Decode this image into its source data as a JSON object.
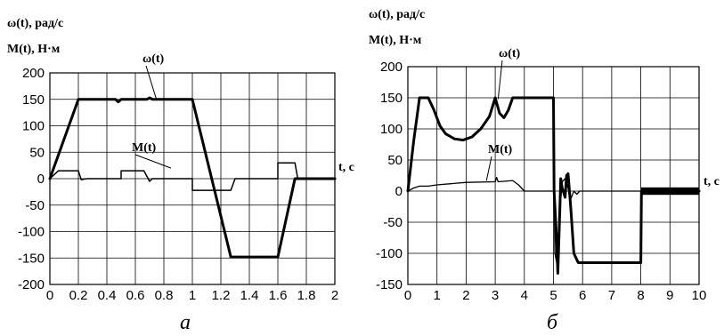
{
  "chart_data": [
    {
      "type": "line",
      "caption": "а",
      "ylabel_line1": "ω(t), рад/с",
      "ylabel_line2": "M(t),  Н·м",
      "xlabel": "t, с",
      "xlim": [
        0,
        2
      ],
      "ylim": [
        -200,
        200
      ],
      "x_ticks": [
        "0",
        "0.2",
        "0.4",
        "0.6",
        "0.8",
        "1",
        "1.2",
        "1.4",
        "1.6",
        "1.8",
        "2"
      ],
      "y_ticks": [
        "200",
        "150",
        "100",
        "50",
        "0",
        "-50",
        "-100",
        "-150",
        "-200"
      ],
      "grid": true,
      "annotations": [
        {
          "text": "ω(t)",
          "series": "omega",
          "at_x": 0.75,
          "at_y": 148
        },
        {
          "text": "M(t)",
          "series": "moment",
          "at_x": 0.85,
          "at_y": 20
        }
      ],
      "series": [
        {
          "key": "omega",
          "line_width": 3,
          "x": [
            0,
            0.2,
            0.46,
            0.48,
            0.5,
            0.68,
            0.7,
            0.72,
            1.0,
            1.27,
            1.6,
            1.72,
            2.0
          ],
          "y": [
            0,
            150,
            150,
            145,
            150,
            150,
            153,
            150,
            150,
            -148,
            -148,
            0,
            0
          ]
        },
        {
          "key": "moment",
          "line_width": 1.5,
          "x": [
            0,
            0.06,
            0.2,
            0.22,
            0.26,
            0.5,
            0.5,
            0.66,
            0.7,
            0.72,
            1.0,
            1.0,
            1.27,
            1.3,
            1.6,
            1.6,
            1.72,
            1.74,
            2.0
          ],
          "y": [
            0,
            15,
            15,
            -2,
            0,
            0,
            15,
            15,
            -5,
            0,
            0,
            -22,
            -22,
            0,
            0,
            30,
            30,
            0,
            0
          ]
        }
      ]
    },
    {
      "type": "line",
      "caption": "б",
      "ylabel_line1": "ω(t), рад/с",
      "ylabel_line2": "M(t),  Н·м",
      "xlabel": "t, с",
      "xlim": [
        0,
        10
      ],
      "ylim": [
        -150,
        200
      ],
      "x_ticks": [
        "0",
        "1",
        "2",
        "3",
        "4",
        "5",
        "6",
        "7",
        "8",
        "9",
        "10"
      ],
      "y_ticks": [
        "200",
        "150",
        "100",
        "50",
        "0",
        "-50",
        "-100",
        "-150"
      ],
      "grid": true,
      "annotations": [
        {
          "text": "ω(t)",
          "series": "omega",
          "at_x": 3.1,
          "at_y": 148
        },
        {
          "text": "M(t)",
          "series": "moment",
          "at_x": 2.7,
          "at_y": 17
        }
      ],
      "series": [
        {
          "key": "omega",
          "line_width": 3,
          "x": [
            0,
            0.2,
            0.4,
            0.7,
            0.9,
            1.1,
            1.3,
            1.6,
            1.9,
            2.2,
            2.5,
            2.8,
            3.0,
            3.15,
            3.3,
            3.45,
            3.6,
            3.7,
            4.0,
            4.5,
            5.0,
            5.02,
            5.1,
            5.15,
            5.2,
            5.25,
            5.3,
            5.4,
            5.45,
            5.5,
            5.6,
            5.7,
            5.85,
            6.0,
            7.0,
            8.0,
            8.02,
            10.0
          ],
          "y": [
            0,
            80,
            150,
            150,
            130,
            105,
            92,
            84,
            82,
            87,
            100,
            120,
            150,
            125,
            118,
            130,
            150,
            150,
            150,
            150,
            150,
            0,
            -70,
            -132,
            -60,
            20,
            5,
            -10,
            25,
            28,
            -30,
            -100,
            -115,
            -115,
            -115,
            -115,
            0,
            0
          ]
        },
        {
          "key": "moment",
          "line_width": 1.3,
          "x": [
            0,
            0.2,
            0.4,
            0.7,
            1.0,
            2.0,
            3.0,
            3.05,
            3.1,
            3.6,
            3.8,
            4.0,
            5.0,
            5.02,
            5.05,
            5.15,
            5.22,
            5.3,
            5.4,
            5.5,
            5.55,
            5.6,
            5.7,
            5.8,
            5.9,
            6.0,
            8.0,
            10.0
          ],
          "y": [
            0,
            5,
            8,
            8,
            10,
            14,
            15,
            22,
            15,
            17,
            10,
            0,
            0,
            10,
            -100,
            -125,
            -30,
            15,
            20,
            5,
            -10,
            -12,
            0,
            -5,
            0,
            0,
            0,
            0
          ]
        }
      ],
      "oscillation_band": {
        "x_from": 8.0,
        "x_to": 10.0,
        "y_min": -6,
        "y_max": 6
      }
    }
  ]
}
